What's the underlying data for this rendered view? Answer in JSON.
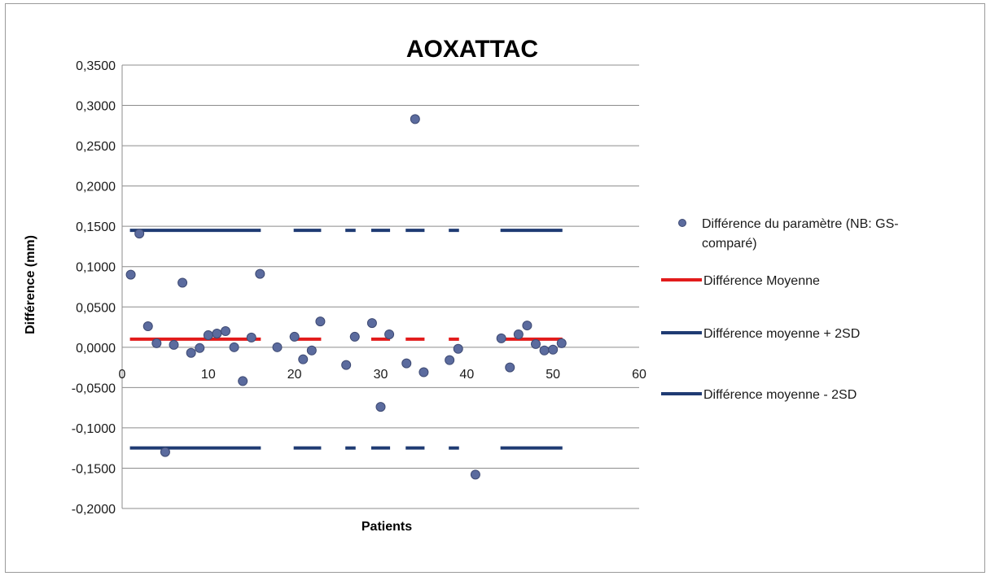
{
  "chart_data": {
    "type": "scatter",
    "title": "AOXATTAC",
    "xlabel": "Patients",
    "ylabel": "Différence (mm)",
    "xlim": [
      0,
      60
    ],
    "ylim": [
      -0.2,
      0.35
    ],
    "x_ticks": [
      "0",
      "10",
      "20",
      "30",
      "40",
      "50",
      "60"
    ],
    "y_ticks": [
      "0,3500",
      "0,3000",
      "0,2500",
      "0,2000",
      "0,1500",
      "0,1000",
      "0,0500",
      "0,0000",
      "-0,0500",
      "-0,1000",
      "-0,1500",
      "-0,2000"
    ],
    "grid": true,
    "legend_position": "right",
    "series": [
      {
        "name": "Différence du paramètre (NB: GS-comparé)",
        "name_lines": [
          "Différence du paramètre (NB: GS-",
          "comparé)"
        ],
        "kind": "points",
        "color": "#5b6b9e",
        "points": [
          [
            1,
            0.09
          ],
          [
            2,
            0.141
          ],
          [
            3,
            0.026
          ],
          [
            4,
            0.005
          ],
          [
            5,
            -0.13
          ],
          [
            6,
            0.003
          ],
          [
            7,
            0.08
          ],
          [
            8,
            -0.007
          ],
          [
            9,
            -0.001
          ],
          [
            10,
            0.015
          ],
          [
            11,
            0.017
          ],
          [
            12,
            0.02
          ],
          [
            13,
            0.0
          ],
          [
            14,
            -0.042
          ],
          [
            15,
            0.012
          ],
          [
            16,
            0.091
          ],
          [
            18,
            0.0
          ],
          [
            20,
            0.013
          ],
          [
            21,
            -0.015
          ],
          [
            22,
            -0.004
          ],
          [
            23,
            0.032
          ],
          [
            26,
            -0.022
          ],
          [
            27,
            0.013
          ],
          [
            29,
            0.03
          ],
          [
            30,
            -0.074
          ],
          [
            31,
            0.016
          ],
          [
            33,
            -0.02
          ],
          [
            34,
            0.283
          ],
          [
            35,
            -0.031
          ],
          [
            38,
            -0.016
          ],
          [
            39,
            -0.002
          ],
          [
            41,
            -0.158
          ],
          [
            44,
            0.011
          ],
          [
            45,
            -0.025
          ],
          [
            46,
            0.016
          ],
          [
            47,
            0.027
          ],
          [
            48,
            0.004
          ],
          [
            49,
            -0.004
          ],
          [
            50,
            -0.003
          ],
          [
            51,
            0.005
          ]
        ]
      },
      {
        "name": "Différence Moyenne",
        "kind": "line",
        "color": "#e21b1b",
        "y": 0.01,
        "segments": [
          [
            1,
            16
          ],
          [
            20,
            23
          ],
          [
            27,
            27
          ],
          [
            29,
            31
          ],
          [
            33,
            35
          ],
          [
            38,
            39
          ],
          [
            44,
            51
          ]
        ]
      },
      {
        "name": "Différence moyenne + 2SD",
        "kind": "line",
        "color": "#1f3b73",
        "y": 0.145,
        "segments": [
          [
            1,
            16
          ],
          [
            20,
            23
          ],
          [
            26,
            27
          ],
          [
            29,
            31
          ],
          [
            33,
            35
          ],
          [
            38,
            39
          ],
          [
            44,
            51
          ]
        ]
      },
      {
        "name": "Différence moyenne - 2SD",
        "kind": "line",
        "color": "#1f3b73",
        "y": -0.125,
        "segments": [
          [
            1,
            16
          ],
          [
            20,
            23
          ],
          [
            26,
            27
          ],
          [
            29,
            31
          ],
          [
            33,
            35
          ],
          [
            38,
            39
          ],
          [
            44,
            51
          ]
        ]
      }
    ]
  }
}
